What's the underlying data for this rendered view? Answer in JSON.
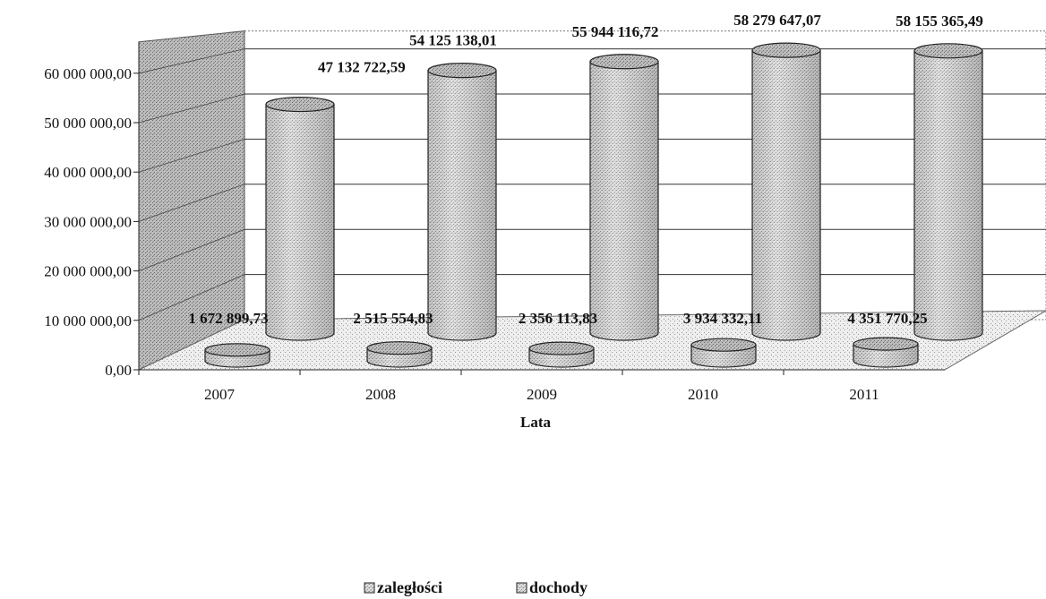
{
  "chart_data": {
    "type": "bar",
    "style": "3d-cylinder",
    "categories": [
      "2007",
      "2008",
      "2009",
      "2010",
      "2011"
    ],
    "series": [
      {
        "name": "zaległości",
        "values": [
          1672899.73,
          2515554.83,
          2356113.83,
          3934332.11,
          4351770.25
        ],
        "labels": [
          "1 672 899,73",
          "2 515 554,83",
          "2 356 113,83",
          "3 934 332,11",
          "4 351 770,25"
        ]
      },
      {
        "name": "dochody",
        "values": [
          47132722.59,
          54125138.01,
          55944116.72,
          58279647.07,
          58155365.49
        ],
        "labels": [
          "47 132 722,59",
          "54 125 138,01",
          "55 944 116,72",
          "58 279 647,07",
          "58 155 365,49"
        ]
      }
    ],
    "xlabel": "Lata",
    "ylabel": "",
    "ylim": [
      0,
      60000000
    ],
    "yticks": [
      0,
      10000000,
      20000000,
      30000000,
      40000000,
      50000000,
      60000000
    ],
    "ytick_labels": [
      "0,00",
      "10 000 000,00",
      "20 000 000,00",
      "30 000 000,00",
      "40 000 000,00",
      "50 000 000,00",
      "60 000 000,00"
    ],
    "grid": true,
    "legend_position": "bottom",
    "colors": {
      "fill": "#d4d4d4",
      "stroke": "#222222",
      "wall": "#bdbdbd"
    }
  }
}
